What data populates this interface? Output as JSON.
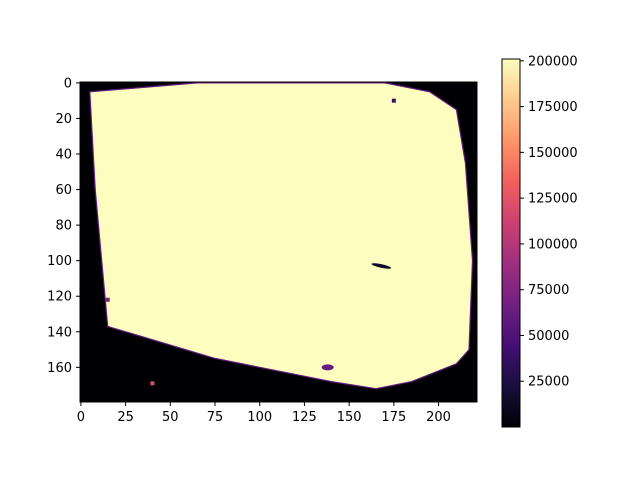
{
  "chart_data": {
    "type": "heatmap",
    "title": "",
    "xlabel": "",
    "ylabel": "",
    "colormap": "magma",
    "xlim": [
      -0.5,
      221.5
    ],
    "ylim": [
      179.5,
      -0.5
    ],
    "x_ticks": [
      0,
      25,
      50,
      75,
      100,
      125,
      150,
      175,
      200
    ],
    "x_tick_labels": [
      "0",
      "25",
      "50",
      "75",
      "100",
      "125",
      "150",
      "175",
      "200"
    ],
    "y_ticks": [
      0,
      20,
      40,
      60,
      80,
      100,
      120,
      140,
      160
    ],
    "y_tick_labels": [
      "0",
      "20",
      "40",
      "60",
      "80",
      "100",
      "120",
      "140",
      "160"
    ],
    "colorbar": {
      "range": [
        0,
        201000
      ],
      "ticks": [
        25000,
        50000,
        75000,
        100000,
        125000,
        150000,
        175000,
        200000
      ],
      "tick_labels": [
        "25000",
        "50000",
        "75000",
        "100000",
        "125000",
        "150000",
        "175000",
        "200000"
      ]
    },
    "background_value": 0,
    "region_value": 201000,
    "region_outline": [
      [
        5,
        5
      ],
      [
        65,
        0
      ],
      [
        170,
        0
      ],
      [
        195,
        5
      ],
      [
        210,
        15
      ],
      [
        215,
        45
      ],
      [
        219,
        100
      ],
      [
        217,
        150
      ],
      [
        210,
        158
      ],
      [
        185,
        168
      ],
      [
        165,
        172
      ],
      [
        140,
        168
      ],
      [
        75,
        155
      ],
      [
        15,
        137
      ],
      [
        8,
        60
      ]
    ],
    "defects": [
      {
        "x": 168,
        "y": 103,
        "value": 15000,
        "shape": "slit"
      },
      {
        "x": 138,
        "y": 160,
        "value": 60000,
        "shape": "blob"
      },
      {
        "x": 15,
        "y": 122,
        "value": 70000,
        "shape": "speck"
      },
      {
        "x": 40,
        "y": 169,
        "value": 120000,
        "shape": "speck"
      },
      {
        "x": 175,
        "y": 10,
        "value": 40000,
        "shape": "speck"
      }
    ]
  },
  "colors": {
    "colormap_stops": [
      "#000004",
      "#180f3d",
      "#440f76",
      "#721f81",
      "#9e2f7f",
      "#cd4071",
      "#f1605d",
      "#fd9668",
      "#feca8d",
      "#fcfdbf"
    ]
  }
}
